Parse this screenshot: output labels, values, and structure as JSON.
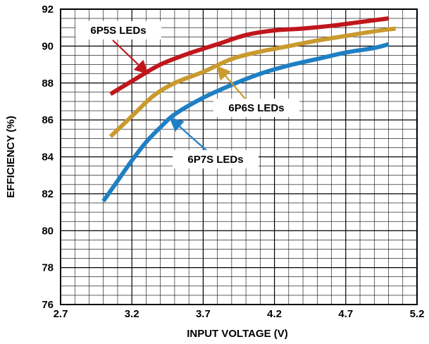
{
  "chart_data": {
    "type": "line",
    "xlabel": "INPUT VOLTAGE (V)",
    "ylabel": "EFFICIENCY (%)",
    "xlim": [
      2.7,
      5.2
    ],
    "ylim": [
      76,
      92
    ],
    "xticks": [
      "2.7",
      "3.2",
      "3.7",
      "4.2",
      "4.7",
      "5.2"
    ],
    "yticks": [
      "76",
      "78",
      "80",
      "82",
      "84",
      "86",
      "88",
      "90",
      "92"
    ],
    "grid": "major and minor",
    "legend": "none (inline annotations)",
    "series": [
      {
        "name": "6P5S LEDs",
        "color": "#c0161c",
        "points": [
          [
            3.05,
            87.4
          ],
          [
            3.2,
            88.1
          ],
          [
            3.4,
            89.0
          ],
          [
            3.6,
            89.6
          ],
          [
            3.8,
            90.1
          ],
          [
            4.0,
            90.6
          ],
          [
            4.2,
            90.85
          ],
          [
            4.4,
            90.95
          ],
          [
            4.6,
            91.1
          ],
          [
            4.8,
            91.3
          ],
          [
            5.0,
            91.5
          ]
        ]
      },
      {
        "name": "6P6S LEDs",
        "color": "#c99a2e",
        "points": [
          [
            3.05,
            85.1
          ],
          [
            3.2,
            86.2
          ],
          [
            3.35,
            87.3
          ],
          [
            3.5,
            88.0
          ],
          [
            3.7,
            88.6
          ],
          [
            3.9,
            89.3
          ],
          [
            4.1,
            89.7
          ],
          [
            4.3,
            90.0
          ],
          [
            4.5,
            90.3
          ],
          [
            4.7,
            90.55
          ],
          [
            4.9,
            90.8
          ],
          [
            5.05,
            90.95
          ]
        ]
      },
      {
        "name": "6P7S LEDs",
        "color": "#1f7fc4",
        "points": [
          [
            3.0,
            81.6
          ],
          [
            3.1,
            82.7
          ],
          [
            3.2,
            83.8
          ],
          [
            3.3,
            84.8
          ],
          [
            3.4,
            85.6
          ],
          [
            3.5,
            86.3
          ],
          [
            3.7,
            87.2
          ],
          [
            3.9,
            87.9
          ],
          [
            4.1,
            88.5
          ],
          [
            4.3,
            88.95
          ],
          [
            4.5,
            89.3
          ],
          [
            4.7,
            89.65
          ],
          [
            4.9,
            89.9
          ],
          [
            5.0,
            90.1
          ]
        ]
      }
    ],
    "annotations": [
      {
        "series": 0,
        "text": "6P5S LEDs",
        "arrow_to": [
          3.31,
          88.52
        ]
      },
      {
        "series": 1,
        "text": "6P6S LEDs",
        "arrow_to": [
          3.8,
          88.89
        ]
      },
      {
        "series": 2,
        "text": "6P7S LEDs",
        "arrow_to": [
          3.47,
          86.09
        ]
      }
    ]
  }
}
